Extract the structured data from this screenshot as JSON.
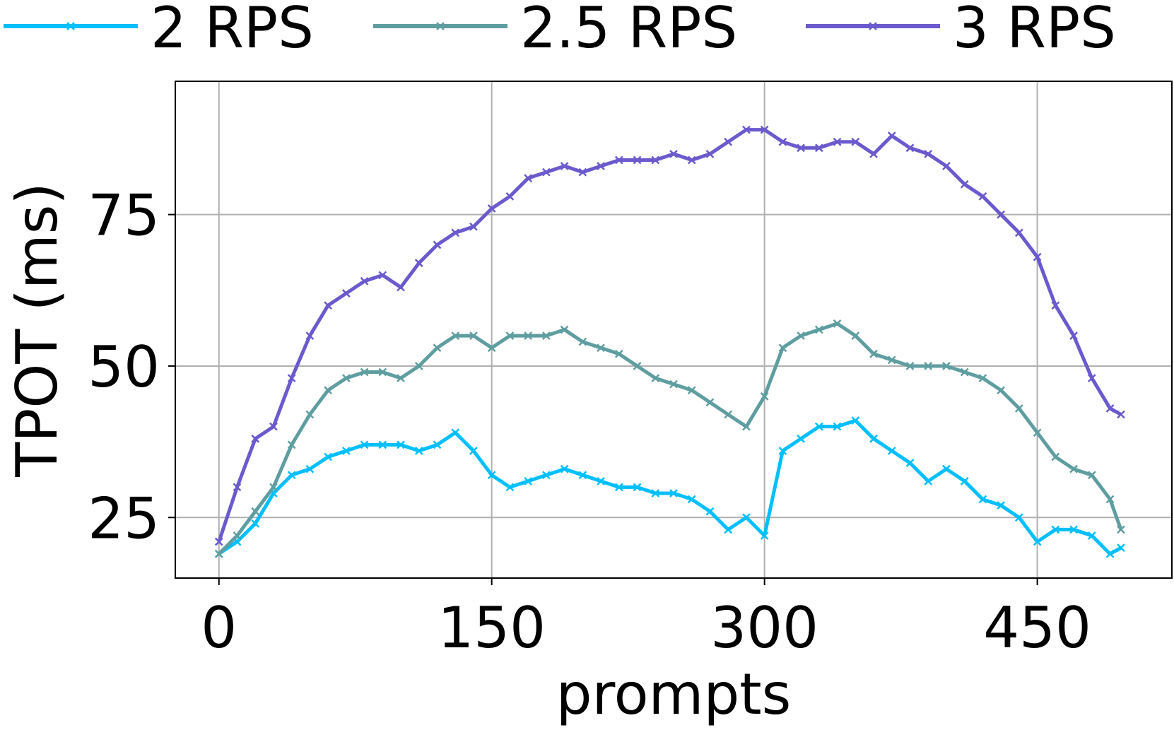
{
  "chart_data": {
    "type": "line",
    "title": "",
    "xlabel": "prompts",
    "ylabel": "TPOT (ms)",
    "xlim": [
      -24,
      524
    ],
    "ylim": [
      15,
      97
    ],
    "xticks": [
      0,
      150,
      300,
      450
    ],
    "yticks": [
      25,
      50,
      75
    ],
    "grid": true,
    "legend": "top, above plot, 3 columns",
    "marker": "x",
    "series": [
      {
        "name": "2 RPS",
        "color": "#00bfff",
        "x": [
          0,
          10,
          20,
          30,
          40,
          50,
          60,
          70,
          80,
          90,
          100,
          110,
          120,
          130,
          140,
          150,
          160,
          170,
          180,
          190,
          200,
          210,
          220,
          230,
          240,
          250,
          260,
          270,
          280,
          290,
          300,
          310,
          320,
          330,
          340,
          350,
          360,
          370,
          380,
          390,
          400,
          410,
          420,
          430,
          440,
          450,
          460,
          470,
          480,
          490,
          496
        ],
        "y": [
          19,
          21,
          24,
          29,
          32,
          33,
          35,
          36,
          37,
          37,
          37,
          36,
          37,
          39,
          36,
          32,
          30,
          31,
          32,
          33,
          32,
          31,
          30,
          30,
          29,
          29,
          28,
          26,
          23,
          25,
          22,
          36,
          38,
          40,
          40,
          41,
          38,
          36,
          34,
          31,
          33,
          31,
          28,
          27,
          25,
          21,
          23,
          23,
          22,
          19,
          20
        ]
      },
      {
        "name": "2.5 RPS",
        "color": "#5f9ea0",
        "x": [
          0,
          10,
          20,
          30,
          40,
          50,
          60,
          70,
          80,
          90,
          100,
          110,
          120,
          130,
          140,
          150,
          160,
          170,
          180,
          190,
          200,
          210,
          220,
          230,
          240,
          250,
          260,
          270,
          280,
          290,
          300,
          310,
          320,
          330,
          340,
          350,
          360,
          370,
          380,
          390,
          400,
          410,
          420,
          430,
          440,
          450,
          460,
          470,
          480,
          490,
          496
        ],
        "y": [
          19,
          22,
          26,
          30,
          37,
          42,
          46,
          48,
          49,
          49,
          48,
          50,
          53,
          55,
          55,
          53,
          55,
          55,
          55,
          56,
          54,
          53,
          52,
          50,
          48,
          47,
          46,
          44,
          42,
          40,
          45,
          53,
          55,
          56,
          57,
          55,
          52,
          51,
          50,
          50,
          50,
          49,
          48,
          46,
          43,
          39,
          35,
          33,
          32,
          28,
          23
        ]
      },
      {
        "name": "3 RPS",
        "color": "#6a5acd",
        "x": [
          0,
          10,
          20,
          30,
          40,
          50,
          60,
          70,
          80,
          90,
          100,
          110,
          120,
          130,
          140,
          150,
          160,
          170,
          180,
          190,
          200,
          210,
          220,
          230,
          240,
          250,
          260,
          270,
          280,
          290,
          300,
          310,
          320,
          330,
          340,
          350,
          360,
          370,
          380,
          390,
          400,
          410,
          420,
          430,
          440,
          450,
          460,
          470,
          480,
          490,
          496
        ],
        "y": [
          21,
          30,
          38,
          40,
          48,
          55,
          60,
          62,
          64,
          65,
          63,
          67,
          70,
          72,
          73,
          76,
          78,
          81,
          82,
          83,
          82,
          83,
          84,
          84,
          84,
          85,
          84,
          85,
          87,
          89,
          89,
          87,
          86,
          86,
          87,
          87,
          85,
          88,
          86,
          85,
          83,
          80,
          78,
          75,
          72,
          68,
          60,
          55,
          48,
          43,
          42
        ]
      }
    ]
  }
}
